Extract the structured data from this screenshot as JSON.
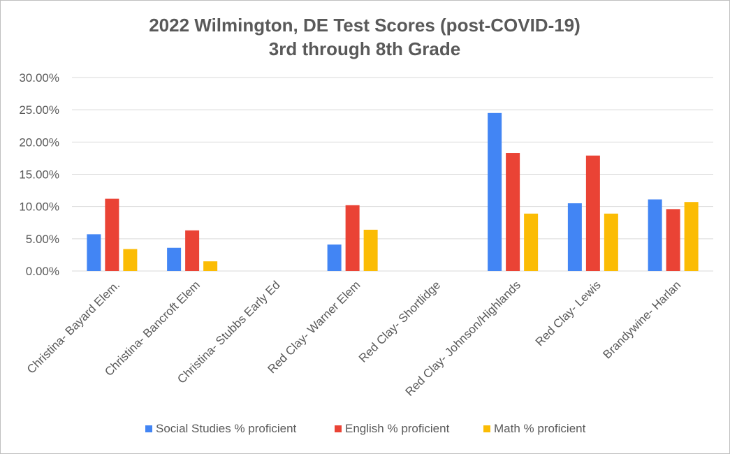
{
  "chart_data": {
    "type": "bar",
    "title_lines": [
      "2022 Wilmington, DE Test Scores (post-COVID-19)",
      "3rd  through 8th Grade"
    ],
    "categories": [
      "Christina- Bayard Elem.",
      "Christina- Bancroft Elem",
      "Christina- Stubbs Early Ed",
      "Red Clay- Warner Elem",
      "Red Clay- Shortlidge",
      "Red Clay- Johnson/Highlands",
      "Red Clay- Lewis",
      "Brandywine- Harlan"
    ],
    "series": [
      {
        "name": "Social Studies % proficient",
        "color": "#4285f4",
        "values": [
          5.7,
          3.6,
          0,
          4.1,
          0,
          24.5,
          10.5,
          11.1
        ]
      },
      {
        "name": "English % proficient",
        "color": "#ea4335",
        "values": [
          11.2,
          6.3,
          0,
          10.2,
          0,
          18.3,
          17.9,
          9.6
        ]
      },
      {
        "name": "Math % proficient",
        "color": "#fbbc04",
        "values": [
          3.4,
          1.5,
          0,
          6.4,
          0,
          8.9,
          8.9,
          10.7
        ]
      }
    ],
    "y_ticks": [
      "0.00%",
      "5.00%",
      "10.00%",
      "15.00%",
      "20.00%",
      "25.00%",
      "30.00%"
    ],
    "ylim": [
      0,
      30
    ],
    "grid": true,
    "legend_position": "bottom"
  }
}
